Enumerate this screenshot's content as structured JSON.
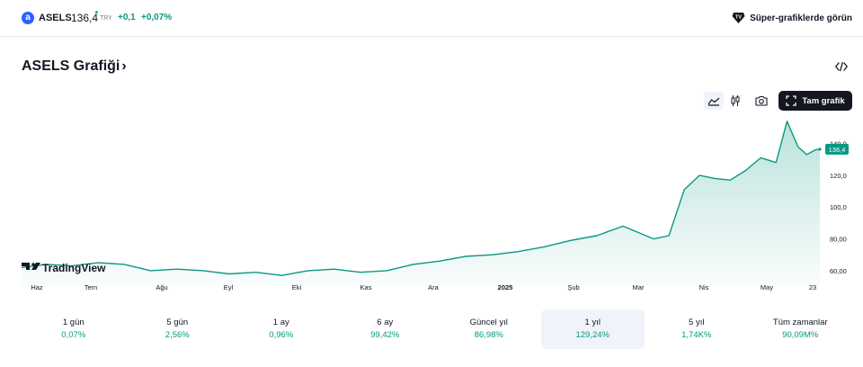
{
  "header": {
    "logo_letter": "a",
    "symbol": "ASELS",
    "price": "136,4",
    "currency": "TRY",
    "change": "+0,1",
    "change_percent": "+0,07%",
    "super_charts_label": "Süper-grafiklerde görün",
    "accent_color": "#089981"
  },
  "title": {
    "label": "ASELS Grafiği",
    "chevron": "›"
  },
  "toolbar": {
    "full_chart_label": "Tam grafik",
    "icons": [
      "area-chart-icon",
      "candles-icon",
      "camera-icon",
      "fullscreen-icon",
      "embed-code-icon"
    ]
  },
  "watermark": "TradingView",
  "chart_data": {
    "type": "area",
    "title": "",
    "xlabel": "",
    "ylabel": "",
    "x_ticks": [
      "Haz",
      "Tem",
      "Ağu",
      "Eyl",
      "Eki",
      "Kas",
      "Ara",
      "2025",
      "Şub",
      "Mar",
      "Nis",
      "May",
      "23"
    ],
    "y_ticks": [
      "60,00",
      "80,00",
      "100,0",
      "120,0",
      "140,0"
    ],
    "ylim": [
      56,
      155
    ],
    "last_value_label": "136,4",
    "line_color": "#089981",
    "x": [
      "2024-05-23",
      "2024-06-03",
      "2024-06-15",
      "2024-06-27",
      "2024-07-09",
      "2024-07-21",
      "2024-08-02",
      "2024-08-14",
      "2024-08-26",
      "2024-09-07",
      "2024-09-19",
      "2024-10-01",
      "2024-10-13",
      "2024-10-25",
      "2024-11-06",
      "2024-11-18",
      "2024-11-30",
      "2024-12-12",
      "2024-12-24",
      "2025-01-05",
      "2025-01-17",
      "2025-01-29",
      "2025-02-10",
      "2025-02-22",
      "2025-03-01",
      "2025-03-08",
      "2025-03-15",
      "2025-03-22",
      "2025-03-29",
      "2025-04-05",
      "2025-04-12",
      "2025-04-19",
      "2025-04-26",
      "2025-05-03",
      "2025-05-08",
      "2025-05-13",
      "2025-05-17",
      "2025-05-21",
      "2025-05-23"
    ],
    "values": [
      62,
      64,
      63,
      65,
      64,
      60,
      61,
      60,
      58,
      59,
      57,
      60,
      61,
      59,
      60,
      64,
      66,
      69,
      70,
      72,
      75,
      79,
      82,
      88,
      84,
      80,
      82,
      111,
      120,
      118,
      117,
      123,
      131,
      128,
      154,
      138,
      133,
      136,
      136.4
    ]
  },
  "periods": [
    {
      "label": "1 gün",
      "value": "0,07%"
    },
    {
      "label": "5 gün",
      "value": "2,56%"
    },
    {
      "label": "1 ay",
      "value": "0,96%"
    },
    {
      "label": "6 ay",
      "value": "99,42%"
    },
    {
      "label": "Güncel yıl",
      "value": "86,98%"
    },
    {
      "label": "1 yıl",
      "value": "129,24%"
    },
    {
      "label": "5 yıl",
      "value": "1,74K%"
    },
    {
      "label": "Tüm zamanlar",
      "value": "90,09M%"
    }
  ],
  "active_period": "1 yıl"
}
